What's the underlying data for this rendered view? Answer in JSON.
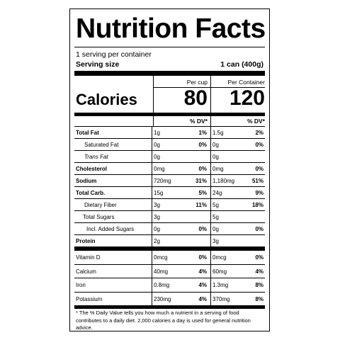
{
  "title": "Nutrition Facts",
  "servings_per_container": "1 serving per container",
  "serving_size_label": "Serving size",
  "serving_size_value": "1 can (400g)",
  "col_headers": {
    "per_cup": "Per cup",
    "per_container": "Per Container"
  },
  "calories": {
    "label": "Calories",
    "per_cup": "80",
    "per_container": "120"
  },
  "dv_header": "% DV*",
  "nutrients": [
    {
      "name": "Total Fat",
      "cup": "1g",
      "cup_dv": "1%",
      "cont": "1.5g",
      "cont_dv": "2%"
    },
    {
      "name": "Saturated Fat",
      "cup": "0g",
      "cup_dv": "0%",
      "cont": "0g",
      "cont_dv": "0%"
    },
    {
      "name": "Trans Fat",
      "cup": "0g",
      "cup_dv": "",
      "cont": "0g",
      "cont_dv": ""
    },
    {
      "name": "Cholesterol",
      "cup": "0mg",
      "cup_dv": "0%",
      "cont": "0mg",
      "cont_dv": "0%"
    },
    {
      "name": "Sodium",
      "cup": "720mg",
      "cup_dv": "31%",
      "cont": "1,180mg",
      "cont_dv": "51%"
    },
    {
      "name": "Total Carb.",
      "cup": "15g",
      "cup_dv": "5%",
      "cont": "24g",
      "cont_dv": "9%"
    },
    {
      "name": "Dietary Fiber",
      "cup": "3g",
      "cup_dv": "11%",
      "cont": "5g",
      "cont_dv": "18%"
    },
    {
      "name": "Total Sugars",
      "cup": "3g",
      "cup_dv": "",
      "cont": "5g",
      "cont_dv": ""
    },
    {
      "name": "Incl. Added Sugars",
      "cup": "0g",
      "cup_dv": "0%",
      "cont": "0g",
      "cont_dv": "0%"
    },
    {
      "name": "Protein",
      "cup": "2g",
      "cup_dv": "",
      "cont": "3g",
      "cont_dv": ""
    }
  ],
  "vitamins": [
    {
      "name": "Vitamin D",
      "cup": "0mcg",
      "cup_dv": "0%",
      "cont": "0mcg",
      "cont_dv": "0%"
    },
    {
      "name": "Calcium",
      "cup": "40mg",
      "cup_dv": "4%",
      "cont": "60mg",
      "cont_dv": "4%"
    },
    {
      "name": "Iron",
      "cup": "0.8mg",
      "cup_dv": "4%",
      "cont": "1.3mg",
      "cont_dv": "8%"
    },
    {
      "name": "Potassium",
      "cup": "230mg",
      "cup_dv": "4%",
      "cont": "370mg",
      "cont_dv": "8%"
    }
  ],
  "footnote": "* The % Daily Value tells you how much a nutrient in a serving of food contributes to a daily diet. 2,000 calories a day is used for general nutrition advice."
}
